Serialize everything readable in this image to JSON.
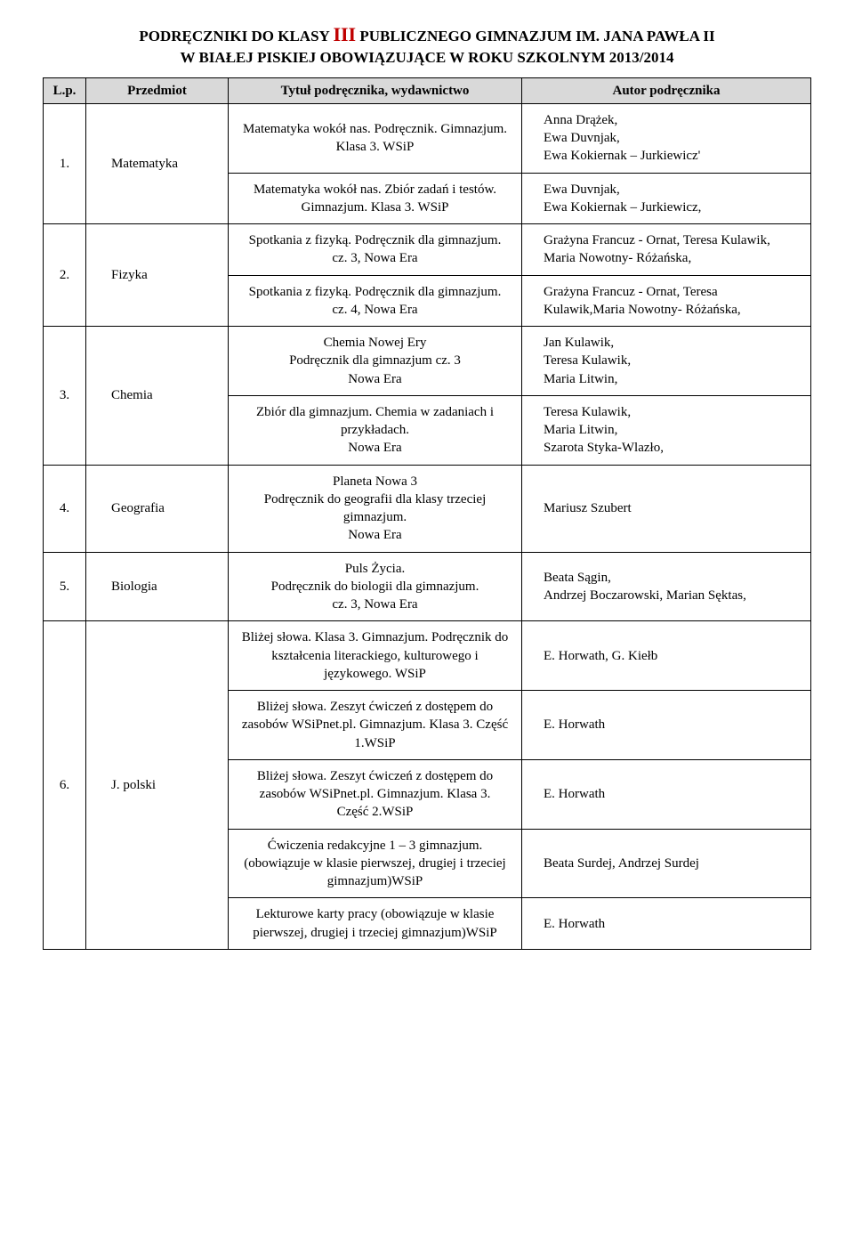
{
  "title_line1_a": "PODRĘCZNIKI DO KLASY ",
  "title_line1_roman": "III",
  "title_line1_b": "  PUBLICZNEGO GIMNAZJUM IM. JANA PAWŁA II",
  "title_line2": "W BIAŁEJ PISKIEJ OBOWIĄZUJĄCE W ROKU SZKOLNYM 2013/2014",
  "headers": {
    "lp": "L.p.",
    "subject": "Przedmiot",
    "book": "Tytuł podręcznika, wydawnictwo",
    "author": "Autor podręcznika"
  },
  "rows": [
    {
      "lp": "1.",
      "subject": "Matematyka",
      "books": [
        {
          "title": "Matematyka wokół nas. Podręcznik. Gimnazjum. Klasa 3. WSiP",
          "author": "Anna Drążek,\nEwa Duvnjak,\nEwa Kokiernak – Jurkiewicz'"
        },
        {
          "title": "Matematyka wokół nas. Zbiór zadań i testów. Gimnazjum. Klasa 3. WSiP",
          "author": "Ewa Duvnjak,\nEwa Kokiernak – Jurkiewicz,"
        }
      ]
    },
    {
      "lp": "2.",
      "subject": "Fizyka",
      "books": [
        {
          "title": "Spotkania z fizyką. Podręcznik dla gimnazjum.\ncz. 3, Nowa Era",
          "author": "Grażyna Francuz - Ornat, Teresa Kulawik, Maria Nowotny- Różańska,"
        },
        {
          "title": "Spotkania z fizyką. Podręcznik dla gimnazjum.\ncz. 4, Nowa Era",
          "author": "Grażyna Francuz - Ornat, Teresa Kulawik,Maria Nowotny- Różańska,"
        }
      ]
    },
    {
      "lp": "3.",
      "subject": "Chemia",
      "books": [
        {
          "title": "Chemia Nowej Ery\nPodręcznik dla gimnazjum cz. 3\nNowa Era",
          "author": "Jan Kulawik,\nTeresa Kulawik,\nMaria Litwin,"
        },
        {
          "title": "Zbiór dla gimnazjum. Chemia w zadaniach i przykładach.\nNowa Era",
          "author": "Teresa Kulawik,\nMaria Litwin,\nSzarota Styka-Wlazło,"
        }
      ]
    },
    {
      "lp": "4.",
      "subject": "Geografia",
      "books": [
        {
          "title": "Planeta Nowa 3\nPodręcznik do geografii dla klasy trzeciej gimnazjum.\nNowa Era",
          "author": "Mariusz Szubert"
        }
      ]
    },
    {
      "lp": "5.",
      "subject": "Biologia",
      "books": [
        {
          "title": "Puls Życia.\nPodręcznik do biologii dla gimnazjum.\ncz. 3, Nowa Era",
          "author": "Beata Sągin,\nAndrzej Boczarowski, Marian Sęktas,"
        }
      ]
    },
    {
      "lp": "6.",
      "subject": "J. polski",
      "books": [
        {
          "title": "Bliżej słowa. Klasa 3. Gimnazjum. Podręcznik do kształcenia literackiego, kulturowego i językowego. WSiP",
          "author": "E. Horwath, G. Kiełb"
        },
        {
          "title": "Bliżej słowa. Zeszyt ćwiczeń z dostępem do zasobów WSiPnet.pl. Gimnazjum. Klasa 3. Część 1.WSiP",
          "author": "E. Horwath"
        },
        {
          "title": "Bliżej słowa. Zeszyt ćwiczeń z dostępem do zasobów WSiPnet.pl. Gimnazjum. Klasa 3.\nCzęść 2.WSiP",
          "author": "E. Horwath"
        },
        {
          "title": "Ćwiczenia redakcyjne 1 – 3 gimnazjum. (obowiązuje w klasie pierwszej, drugiej i trzeciej gimnazjum)WSiP",
          "author": "Beata Surdej, Andrzej Surdej"
        },
        {
          "title": "Lekturowe karty pracy (obowiązuje w klasie pierwszej, drugiej i trzeciej gimnazjum)WSiP",
          "author": "E. Horwath"
        }
      ]
    }
  ]
}
